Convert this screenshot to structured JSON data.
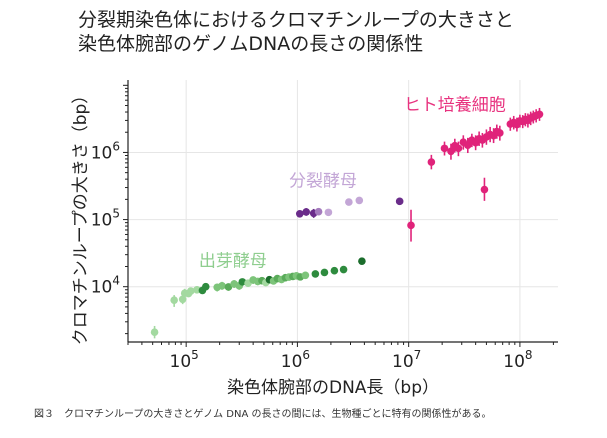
{
  "title_lines": [
    "分裂期染色体におけるクロマチンループの大きさと",
    "染色体腕部のゲノムDNAの長さの関係性"
  ],
  "caption": {
    "number": "図３",
    "text": "クロマチンループの大きさとゲノム DNA の長さの間には、生物種ごとに特有の関係性がある。"
  },
  "chart_data": {
    "type": "scatter",
    "xlabel": "染色体腕部のDNA長（bp）",
    "ylabel": "クロマチンループの大きさ（bp）",
    "xscale": "log",
    "yscale": "log",
    "xlim": [
      30000,
      220000000
    ],
    "ylim": [
      1500,
      12000000
    ],
    "grid": true,
    "x_ticks": [
      {
        "value": 100000,
        "base": "10",
        "exp": "5"
      },
      {
        "value": 1000000,
        "base": "10",
        "exp": "6"
      },
      {
        "value": 10000000,
        "base": "10",
        "exp": "7"
      },
      {
        "value": 100000000,
        "base": "10",
        "exp": "8"
      }
    ],
    "y_ticks": [
      {
        "value": 10000,
        "base": "10",
        "exp": "4"
      },
      {
        "value": 100000,
        "base": "10",
        "exp": "5"
      },
      {
        "value": 1000000,
        "base": "10",
        "exp": "6"
      }
    ],
    "series": [
      {
        "name": "出芽酵母",
        "label_color": "#8fce8f",
        "points": [
          {
            "x": 52000,
            "y": 2100,
            "lo": 1700,
            "hi": 2600,
            "color": "#a3d9a0"
          },
          {
            "x": 78000,
            "y": 6300,
            "lo": 5000,
            "hi": 7500,
            "color": "#a3d9a0"
          },
          {
            "x": 93000,
            "y": 6500,
            "lo": 5500,
            "hi": 7600,
            "color": "#a3d9a0"
          },
          {
            "x": 97000,
            "y": 8000,
            "lo": 6800,
            "hi": 9300,
            "color": "#a3d9a0"
          },
          {
            "x": 105000,
            "y": 7900,
            "lo": 7000,
            "hi": 8900,
            "color": "#a3d9a0"
          },
          {
            "x": 110000,
            "y": 8600,
            "lo": 7600,
            "hi": 9700,
            "color": "#a3d9a0"
          },
          {
            "x": 125000,
            "y": 9000,
            "lo": 8000,
            "hi": 10200,
            "color": "#a3d9a0"
          },
          {
            "x": 140000,
            "y": 8800,
            "lo": 7900,
            "hi": 9800,
            "color": "#2e8b3e"
          },
          {
            "x": 150000,
            "y": 10000,
            "lo": 8800,
            "hi": 11300,
            "color": "#2e8b3e"
          },
          {
            "x": 190000,
            "y": 9800,
            "lo": 8500,
            "hi": 11000,
            "color": "#7dc47a"
          },
          {
            "x": 210000,
            "y": 10300,
            "lo": 9000,
            "hi": 11800,
            "color": "#7dc47a"
          },
          {
            "x": 240000,
            "y": 9900,
            "lo": 8700,
            "hi": 11000,
            "color": "#5aab5a"
          },
          {
            "x": 270000,
            "y": 11000,
            "lo": 9600,
            "hi": 12500,
            "color": "#7dc47a"
          },
          {
            "x": 300000,
            "y": 10300,
            "lo": 9000,
            "hi": 11600,
            "color": "#7dc47a"
          },
          {
            "x": 320000,
            "y": 11800,
            "lo": 10500,
            "hi": 13000,
            "color": "#2e8b3e"
          },
          {
            "x": 360000,
            "y": 11300,
            "lo": 9900,
            "hi": 12700,
            "color": "#a3d9a0"
          },
          {
            "x": 400000,
            "y": 12600,
            "lo": 11000,
            "hi": 14000,
            "color": "#7dc47a"
          },
          {
            "x": 440000,
            "y": 12000,
            "lo": 10500,
            "hi": 13500,
            "color": "#7dc47a"
          },
          {
            "x": 480000,
            "y": 12300,
            "lo": 10800,
            "hi": 13900,
            "color": "#5aab5a"
          },
          {
            "x": 520000,
            "y": 11500,
            "lo": 10200,
            "hi": 13000,
            "color": "#a3d9a0"
          },
          {
            "x": 560000,
            "y": 12700,
            "lo": 11200,
            "hi": 14300,
            "color": "#1b6d2c"
          },
          {
            "x": 610000,
            "y": 12200,
            "lo": 10800,
            "hi": 13600,
            "color": "#7dc47a"
          },
          {
            "x": 660000,
            "y": 13200,
            "lo": 11600,
            "hi": 14800,
            "color": "#5aab5a"
          },
          {
            "x": 720000,
            "y": 12800,
            "lo": 11300,
            "hi": 14400,
            "color": "#7dc47a"
          },
          {
            "x": 780000,
            "y": 13600,
            "lo": 12000,
            "hi": 15200,
            "color": "#5aab5a"
          },
          {
            "x": 840000,
            "y": 13900,
            "lo": 12300,
            "hi": 15600,
            "color": "#7dc47a"
          },
          {
            "x": 910000,
            "y": 14200,
            "lo": 12600,
            "hi": 15800,
            "color": "#5aab5a"
          },
          {
            "x": 980000,
            "y": 14500,
            "lo": 12900,
            "hi": 16200,
            "color": "#7dc47a"
          },
          {
            "x": 1060000,
            "y": 14000,
            "lo": 12500,
            "hi": 15600,
            "color": "#5aab5a"
          },
          {
            "x": 1180000,
            "y": 14800,
            "lo": 13100,
            "hi": 16500,
            "color": "#7dc47a"
          },
          {
            "x": 1450000,
            "y": 15500,
            "lo": 13800,
            "hi": 17300,
            "color": "#2e8b3e"
          },
          {
            "x": 1750000,
            "y": 16300,
            "lo": 14500,
            "hi": 18200,
            "color": "#2e8b3e"
          },
          {
            "x": 2150000,
            "y": 17300,
            "lo": 15400,
            "hi": 19400,
            "color": "#2e8b3e"
          },
          {
            "x": 2600000,
            "y": 18000,
            "lo": 16000,
            "hi": 20000,
            "color": "#2e8b3e"
          },
          {
            "x": 3800000,
            "y": 24000,
            "lo": 21500,
            "hi": 26500,
            "color": "#1b6d2c"
          }
        ]
      },
      {
        "name": "分裂酵母",
        "label_color": "#c3a6d6",
        "points": [
          {
            "x": 1050000,
            "y": 122000,
            "lo": 108000,
            "hi": 137000,
            "color": "#6a2c8a"
          },
          {
            "x": 1200000,
            "y": 130000,
            "lo": 114000,
            "hi": 148000,
            "color": "#6a2c8a"
          },
          {
            "x": 1400000,
            "y": 124000,
            "lo": 106000,
            "hi": 144000,
            "color": "#6a2c8a"
          },
          {
            "x": 1550000,
            "y": 131000,
            "lo": 116000,
            "hi": 147000,
            "color": "#a47bbd"
          },
          {
            "x": 1900000,
            "y": 128000,
            "lo": 114000,
            "hi": 143000,
            "color": "#c3a6d6"
          },
          {
            "x": 2900000,
            "y": 182000,
            "lo": 162000,
            "hi": 204000,
            "color": "#c3a6d6"
          },
          {
            "x": 3600000,
            "y": 193000,
            "lo": 172000,
            "hi": 216000,
            "color": "#c3a6d6"
          },
          {
            "x": 8300000,
            "y": 187000,
            "lo": 167000,
            "hi": 210000,
            "color": "#6a2c8a"
          }
        ]
      },
      {
        "name": "ヒト培養細胞",
        "label_color": "#e8337f",
        "points": [
          {
            "x": 10500000,
            "y": 82000,
            "lo": 47000,
            "hi": 140000,
            "color": "#e0237a"
          },
          {
            "x": 16000000,
            "y": 720000,
            "lo": 560000,
            "hi": 920000,
            "color": "#e0237a"
          },
          {
            "x": 21000000,
            "y": 1150000,
            "lo": 900000,
            "hi": 1450000,
            "color": "#e0237a"
          },
          {
            "x": 24000000,
            "y": 1040000,
            "lo": 780000,
            "hi": 1350000,
            "color": "#e0237a"
          },
          {
            "x": 26000000,
            "y": 1260000,
            "lo": 1000000,
            "hi": 1600000,
            "color": "#e0237a"
          },
          {
            "x": 28000000,
            "y": 1150000,
            "lo": 880000,
            "hi": 1450000,
            "color": "#e0237a"
          },
          {
            "x": 31000000,
            "y": 1420000,
            "lo": 1100000,
            "hi": 1800000,
            "color": "#e0237a"
          },
          {
            "x": 34000000,
            "y": 1280000,
            "lo": 980000,
            "hi": 1650000,
            "color": "#e0237a"
          },
          {
            "x": 37000000,
            "y": 1520000,
            "lo": 1200000,
            "hi": 1900000,
            "color": "#e0237a"
          },
          {
            "x": 40000000,
            "y": 1400000,
            "lo": 1080000,
            "hi": 1800000,
            "color": "#e0237a"
          },
          {
            "x": 43000000,
            "y": 1600000,
            "lo": 1250000,
            "hi": 2050000,
            "color": "#e0237a"
          },
          {
            "x": 46000000,
            "y": 1530000,
            "lo": 1180000,
            "hi": 1950000,
            "color": "#e0237a"
          },
          {
            "x": 48000000,
            "y": 280000,
            "lo": 190000,
            "hi": 420000,
            "color": "#e0237a"
          },
          {
            "x": 50000000,
            "y": 1700000,
            "lo": 1300000,
            "hi": 2200000,
            "color": "#e0237a"
          },
          {
            "x": 54000000,
            "y": 1850000,
            "lo": 1420000,
            "hi": 2400000,
            "color": "#e0237a"
          },
          {
            "x": 58000000,
            "y": 1780000,
            "lo": 1380000,
            "hi": 2300000,
            "color": "#e0237a"
          },
          {
            "x": 62000000,
            "y": 2050000,
            "lo": 1600000,
            "hi": 2600000,
            "color": "#e0237a"
          },
          {
            "x": 66000000,
            "y": 1950000,
            "lo": 1500000,
            "hi": 2500000,
            "color": "#e0237a"
          },
          {
            "x": 82000000,
            "y": 2650000,
            "lo": 2100000,
            "hi": 3300000,
            "color": "#e0237a"
          },
          {
            "x": 88000000,
            "y": 2800000,
            "lo": 2200000,
            "hi": 3500000,
            "color": "#e0237a"
          },
          {
            "x": 94000000,
            "y": 2600000,
            "lo": 2050000,
            "hi": 3300000,
            "color": "#e0237a"
          },
          {
            "x": 100000000,
            "y": 2950000,
            "lo": 2350000,
            "hi": 3650000,
            "color": "#e0237a"
          },
          {
            "x": 106000000,
            "y": 2900000,
            "lo": 2300000,
            "hi": 3600000,
            "color": "#e0237a"
          },
          {
            "x": 112000000,
            "y": 3100000,
            "lo": 2450000,
            "hi": 3850000,
            "color": "#e0237a"
          },
          {
            "x": 118000000,
            "y": 3000000,
            "lo": 2350000,
            "hi": 3800000,
            "color": "#e0237a"
          },
          {
            "x": 125000000,
            "y": 3250000,
            "lo": 2550000,
            "hi": 4050000,
            "color": "#e0237a"
          },
          {
            "x": 132000000,
            "y": 3400000,
            "lo": 2700000,
            "hi": 4200000,
            "color": "#e0237a"
          },
          {
            "x": 140000000,
            "y": 3550000,
            "lo": 2800000,
            "hi": 4400000,
            "color": "#e0237a"
          },
          {
            "x": 150000000,
            "y": 3700000,
            "lo": 2950000,
            "hi": 4600000,
            "color": "#e0237a"
          }
        ]
      }
    ]
  }
}
